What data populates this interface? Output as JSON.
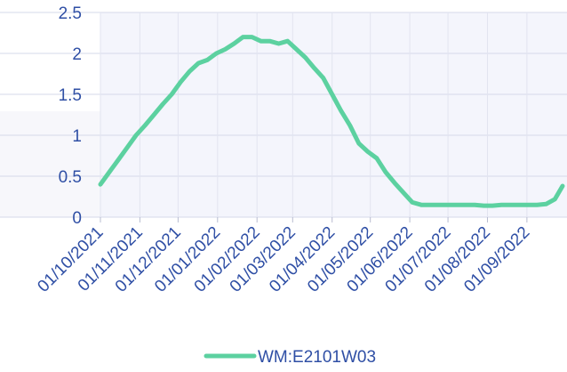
{
  "chart_data": {
    "type": "line",
    "x": [
      "01/10/2021",
      "08/10/2021",
      "15/10/2021",
      "22/10/2021",
      "29/10/2021",
      "05/11/2021",
      "12/11/2021",
      "19/11/2021",
      "26/11/2021",
      "03/12/2021",
      "10/12/2021",
      "17/12/2021",
      "24/12/2021",
      "31/12/2021",
      "07/01/2022",
      "14/01/2022",
      "21/01/2022",
      "28/01/2022",
      "04/02/2022",
      "11/02/2022",
      "18/02/2022",
      "25/02/2022",
      "04/03/2022",
      "11/03/2022",
      "18/03/2022",
      "25/03/2022",
      "01/04/2022",
      "08/04/2022",
      "15/04/2022",
      "22/04/2022",
      "29/04/2022",
      "06/05/2022",
      "13/05/2022",
      "20/05/2022",
      "27/05/2022",
      "03/06/2022",
      "10/06/2022",
      "17/06/2022",
      "24/06/2022",
      "01/07/2022",
      "08/07/2022",
      "15/07/2022",
      "22/07/2022",
      "29/07/2022",
      "05/08/2022",
      "12/08/2022",
      "19/08/2022",
      "26/08/2022",
      "02/09/2022",
      "09/09/2022",
      "16/09/2022",
      "23/09/2022",
      "29/09/2022"
    ],
    "series": [
      {
        "name": "WM:E2101W03",
        "color": "#5cd1a0",
        "values": [
          0.4,
          0.55,
          0.7,
          0.85,
          1.0,
          1.12,
          1.25,
          1.38,
          1.5,
          1.65,
          1.78,
          1.88,
          1.92,
          2.0,
          2.05,
          2.12,
          2.2,
          2.2,
          2.15,
          2.15,
          2.12,
          2.15,
          2.05,
          1.95,
          1.82,
          1.7,
          1.5,
          1.3,
          1.12,
          0.9,
          0.8,
          0.72,
          0.55,
          0.42,
          0.3,
          0.18,
          0.15,
          0.15,
          0.15,
          0.15,
          0.15,
          0.15,
          0.15,
          0.14,
          0.14,
          0.15,
          0.15,
          0.15,
          0.15,
          0.15,
          0.16,
          0.22,
          0.38
        ]
      }
    ],
    "xlim": [
      "01/10/2021",
      "29/09/2022"
    ],
    "xticks": [
      "01/10/2021",
      "01/11/2021",
      "01/12/2021",
      "01/01/2022",
      "01/02/2022",
      "01/03/2022",
      "01/04/2022",
      "01/05/2022",
      "01/06/2022",
      "01/07/2022",
      "01/08/2022",
      "01/09/2022"
    ],
    "ylim": [
      0,
      2.5
    ],
    "yticks": [
      0,
      0.5,
      1,
      1.5,
      2,
      2.5
    ],
    "grid": true
  }
}
